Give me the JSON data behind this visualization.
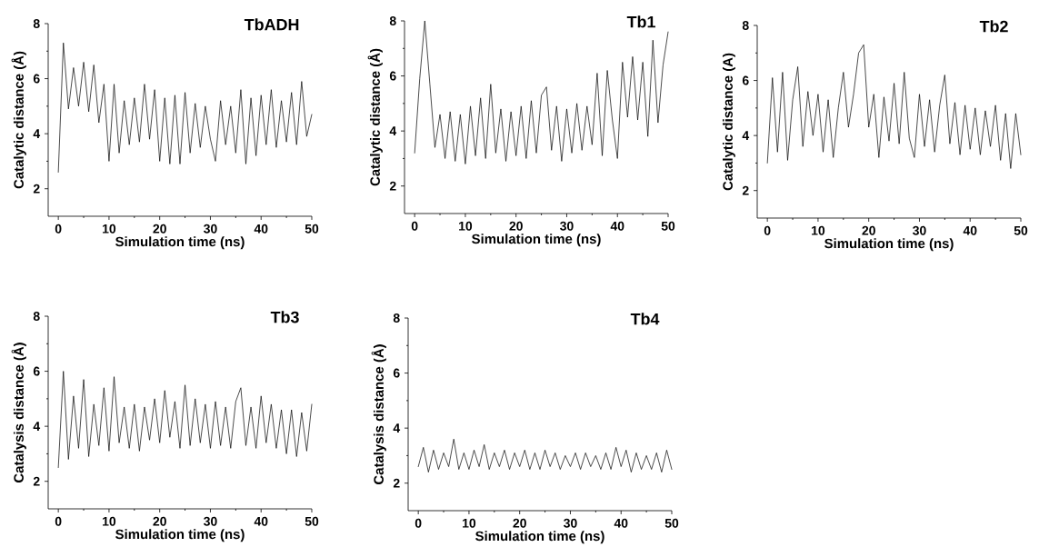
{
  "chart_data": [
    {
      "type": "line",
      "title": "TbADH",
      "xlabel": "Simulation time (ns)",
      "ylabel": "Catalytic distance (Å)",
      "color": "#000000",
      "xlim": [
        -2,
        50
      ],
      "ylim": [
        1,
        8
      ],
      "xticks": [
        0,
        10,
        20,
        30,
        40,
        50
      ],
      "yticks": [
        2,
        4,
        6,
        8
      ],
      "x": [
        0,
        1,
        2,
        3,
        4,
        5,
        6,
        7,
        8,
        9,
        10,
        11,
        12,
        13,
        14,
        15,
        16,
        17,
        18,
        19,
        20,
        21,
        22,
        23,
        24,
        25,
        26,
        27,
        28,
        29,
        30,
        31,
        32,
        33,
        34,
        35,
        36,
        37,
        38,
        39,
        40,
        41,
        42,
        43,
        44,
        45,
        46,
        47,
        48,
        49,
        50
      ],
      "values": [
        2.6,
        7.3,
        4.9,
        6.4,
        5.0,
        6.6,
        4.8,
        6.5,
        4.4,
        5.8,
        3.0,
        5.8,
        3.3,
        5.2,
        3.6,
        5.3,
        3.7,
        5.8,
        3.8,
        5.6,
        3.0,
        5.3,
        2.9,
        5.4,
        2.9,
        5.5,
        3.3,
        5.1,
        3.5,
        5.0,
        3.8,
        3.0,
        5.2,
        3.6,
        5.0,
        3.3,
        5.6,
        2.9,
        5.3,
        3.2,
        5.4,
        3.6,
        5.6,
        3.5,
        5.2,
        3.7,
        5.5,
        3.6,
        5.9,
        3.9,
        4.7
      ]
    },
    {
      "type": "line",
      "title": "Tb1",
      "xlabel": "Simulation time (ns)",
      "ylabel": "Catalytic distance (Å)",
      "color": "#000000",
      "xlim": [
        -2,
        50
      ],
      "ylim": [
        1,
        8
      ],
      "xticks": [
        0,
        10,
        20,
        30,
        40,
        50
      ],
      "yticks": [
        2,
        4,
        6,
        8
      ],
      "x": [
        0,
        1,
        2,
        3,
        4,
        5,
        6,
        7,
        8,
        9,
        10,
        11,
        12,
        13,
        14,
        15,
        16,
        17,
        18,
        19,
        20,
        21,
        22,
        23,
        24,
        25,
        26,
        27,
        28,
        29,
        30,
        31,
        32,
        33,
        34,
        35,
        36,
        37,
        38,
        39,
        40,
        41,
        42,
        43,
        44,
        45,
        46,
        47,
        48,
        49,
        50
      ],
      "values": [
        3.2,
        5.9,
        8.0,
        5.7,
        3.4,
        4.6,
        3.0,
        4.7,
        2.9,
        4.6,
        2.8,
        4.9,
        3.1,
        5.2,
        3.0,
        5.7,
        3.2,
        4.8,
        2.9,
        4.7,
        3.1,
        4.9,
        3.0,
        5.1,
        3.2,
        5.3,
        5.6,
        3.3,
        4.9,
        2.9,
        4.8,
        3.2,
        5.0,
        3.3,
        4.9,
        3.5,
        6.1,
        3.1,
        6.2,
        4.4,
        3.0,
        6.5,
        4.5,
        6.7,
        4.4,
        6.5,
        3.8,
        7.3,
        4.3,
        6.4,
        7.6
      ]
    },
    {
      "type": "line",
      "title": "Tb2",
      "xlabel": "Simulation time (ns)",
      "ylabel": "Catalytic distance (A)",
      "color": "#000000",
      "xlim": [
        -2,
        50
      ],
      "ylim": [
        1,
        8
      ],
      "xticks": [
        0,
        10,
        20,
        30,
        40,
        50
      ],
      "yticks": [
        2,
        4,
        6,
        8
      ],
      "x": [
        0,
        1,
        2,
        3,
        4,
        5,
        6,
        7,
        8,
        9,
        10,
        11,
        12,
        13,
        14,
        15,
        16,
        17,
        18,
        19,
        20,
        21,
        22,
        23,
        24,
        25,
        26,
        27,
        28,
        29,
        30,
        31,
        32,
        33,
        34,
        35,
        36,
        37,
        38,
        39,
        40,
        41,
        42,
        43,
        44,
        45,
        46,
        47,
        48,
        49,
        50
      ],
      "values": [
        3.0,
        6.1,
        3.4,
        6.3,
        3.1,
        5.3,
        6.5,
        3.6,
        5.6,
        4.0,
        5.5,
        3.4,
        5.3,
        3.2,
        5.0,
        6.3,
        4.3,
        5.5,
        7.0,
        7.3,
        4.3,
        5.5,
        3.2,
        5.4,
        3.8,
        5.9,
        3.7,
        6.3,
        3.9,
        3.2,
        5.5,
        3.6,
        5.3,
        3.4,
        5.1,
        6.2,
        3.7,
        5.2,
        3.3,
        5.1,
        3.5,
        5.0,
        3.3,
        4.9,
        3.6,
        5.1,
        3.1,
        4.8,
        2.8,
        4.8,
        3.3
      ]
    },
    {
      "type": "line",
      "title": "Tb3",
      "xlabel": "Simulation time (ns)",
      "ylabel": "Catalysis distance (Å)",
      "color": "#000000",
      "xlim": [
        -2,
        50
      ],
      "ylim": [
        1,
        8
      ],
      "xticks": [
        0,
        10,
        20,
        30,
        40,
        50
      ],
      "yticks": [
        2,
        4,
        6,
        8
      ],
      "x": [
        0,
        1,
        2,
        3,
        4,
        5,
        6,
        7,
        8,
        9,
        10,
        11,
        12,
        13,
        14,
        15,
        16,
        17,
        18,
        19,
        20,
        21,
        22,
        23,
        24,
        25,
        26,
        27,
        28,
        29,
        30,
        31,
        32,
        33,
        34,
        35,
        36,
        37,
        38,
        39,
        40,
        41,
        42,
        43,
        44,
        45,
        46,
        47,
        48,
        49,
        50
      ],
      "values": [
        2.5,
        6.0,
        2.8,
        5.1,
        3.2,
        5.7,
        2.9,
        4.8,
        3.3,
        5.4,
        3.1,
        5.8,
        3.4,
        4.7,
        3.2,
        4.8,
        3.1,
        4.7,
        3.5,
        5.0,
        3.4,
        5.3,
        3.6,
        4.9,
        3.2,
        5.5,
        3.3,
        5.0,
        3.4,
        4.8,
        3.2,
        4.9,
        3.3,
        4.7,
        3.2,
        4.9,
        5.4,
        3.3,
        4.7,
        3.2,
        5.1,
        3.4,
        4.8,
        3.2,
        4.6,
        3.0,
        4.6,
        2.9,
        4.5,
        3.1,
        4.8
      ]
    },
    {
      "type": "line",
      "title": "Tb4",
      "xlabel": "Simulation time (ns)",
      "ylabel": "Catalysis distance (Å)",
      "color": "#000000",
      "xlim": [
        -2,
        50
      ],
      "ylim": [
        1,
        8
      ],
      "xticks": [
        0,
        10,
        20,
        30,
        40,
        50
      ],
      "yticks": [
        2,
        4,
        6,
        8
      ],
      "x": [
        0,
        1,
        2,
        3,
        4,
        5,
        6,
        7,
        8,
        9,
        10,
        11,
        12,
        13,
        14,
        15,
        16,
        17,
        18,
        19,
        20,
        21,
        22,
        23,
        24,
        25,
        26,
        27,
        28,
        29,
        30,
        31,
        32,
        33,
        34,
        35,
        36,
        37,
        38,
        39,
        40,
        41,
        42,
        43,
        44,
        45,
        46,
        47,
        48,
        49,
        50
      ],
      "values": [
        2.6,
        3.3,
        2.4,
        3.2,
        2.5,
        3.1,
        2.6,
        3.6,
        2.5,
        3.1,
        2.5,
        3.2,
        2.6,
        3.4,
        2.5,
        3.1,
        2.6,
        3.2,
        2.5,
        3.1,
        2.6,
        3.2,
        2.5,
        3.1,
        2.5,
        3.2,
        2.6,
        3.1,
        2.5,
        3.0,
        2.6,
        3.1,
        2.5,
        3.1,
        2.6,
        3.0,
        2.5,
        3.1,
        2.5,
        3.3,
        2.6,
        3.2,
        2.4,
        3.1,
        2.5,
        3.0,
        2.5,
        3.1,
        2.4,
        3.2,
        2.5
      ]
    }
  ]
}
